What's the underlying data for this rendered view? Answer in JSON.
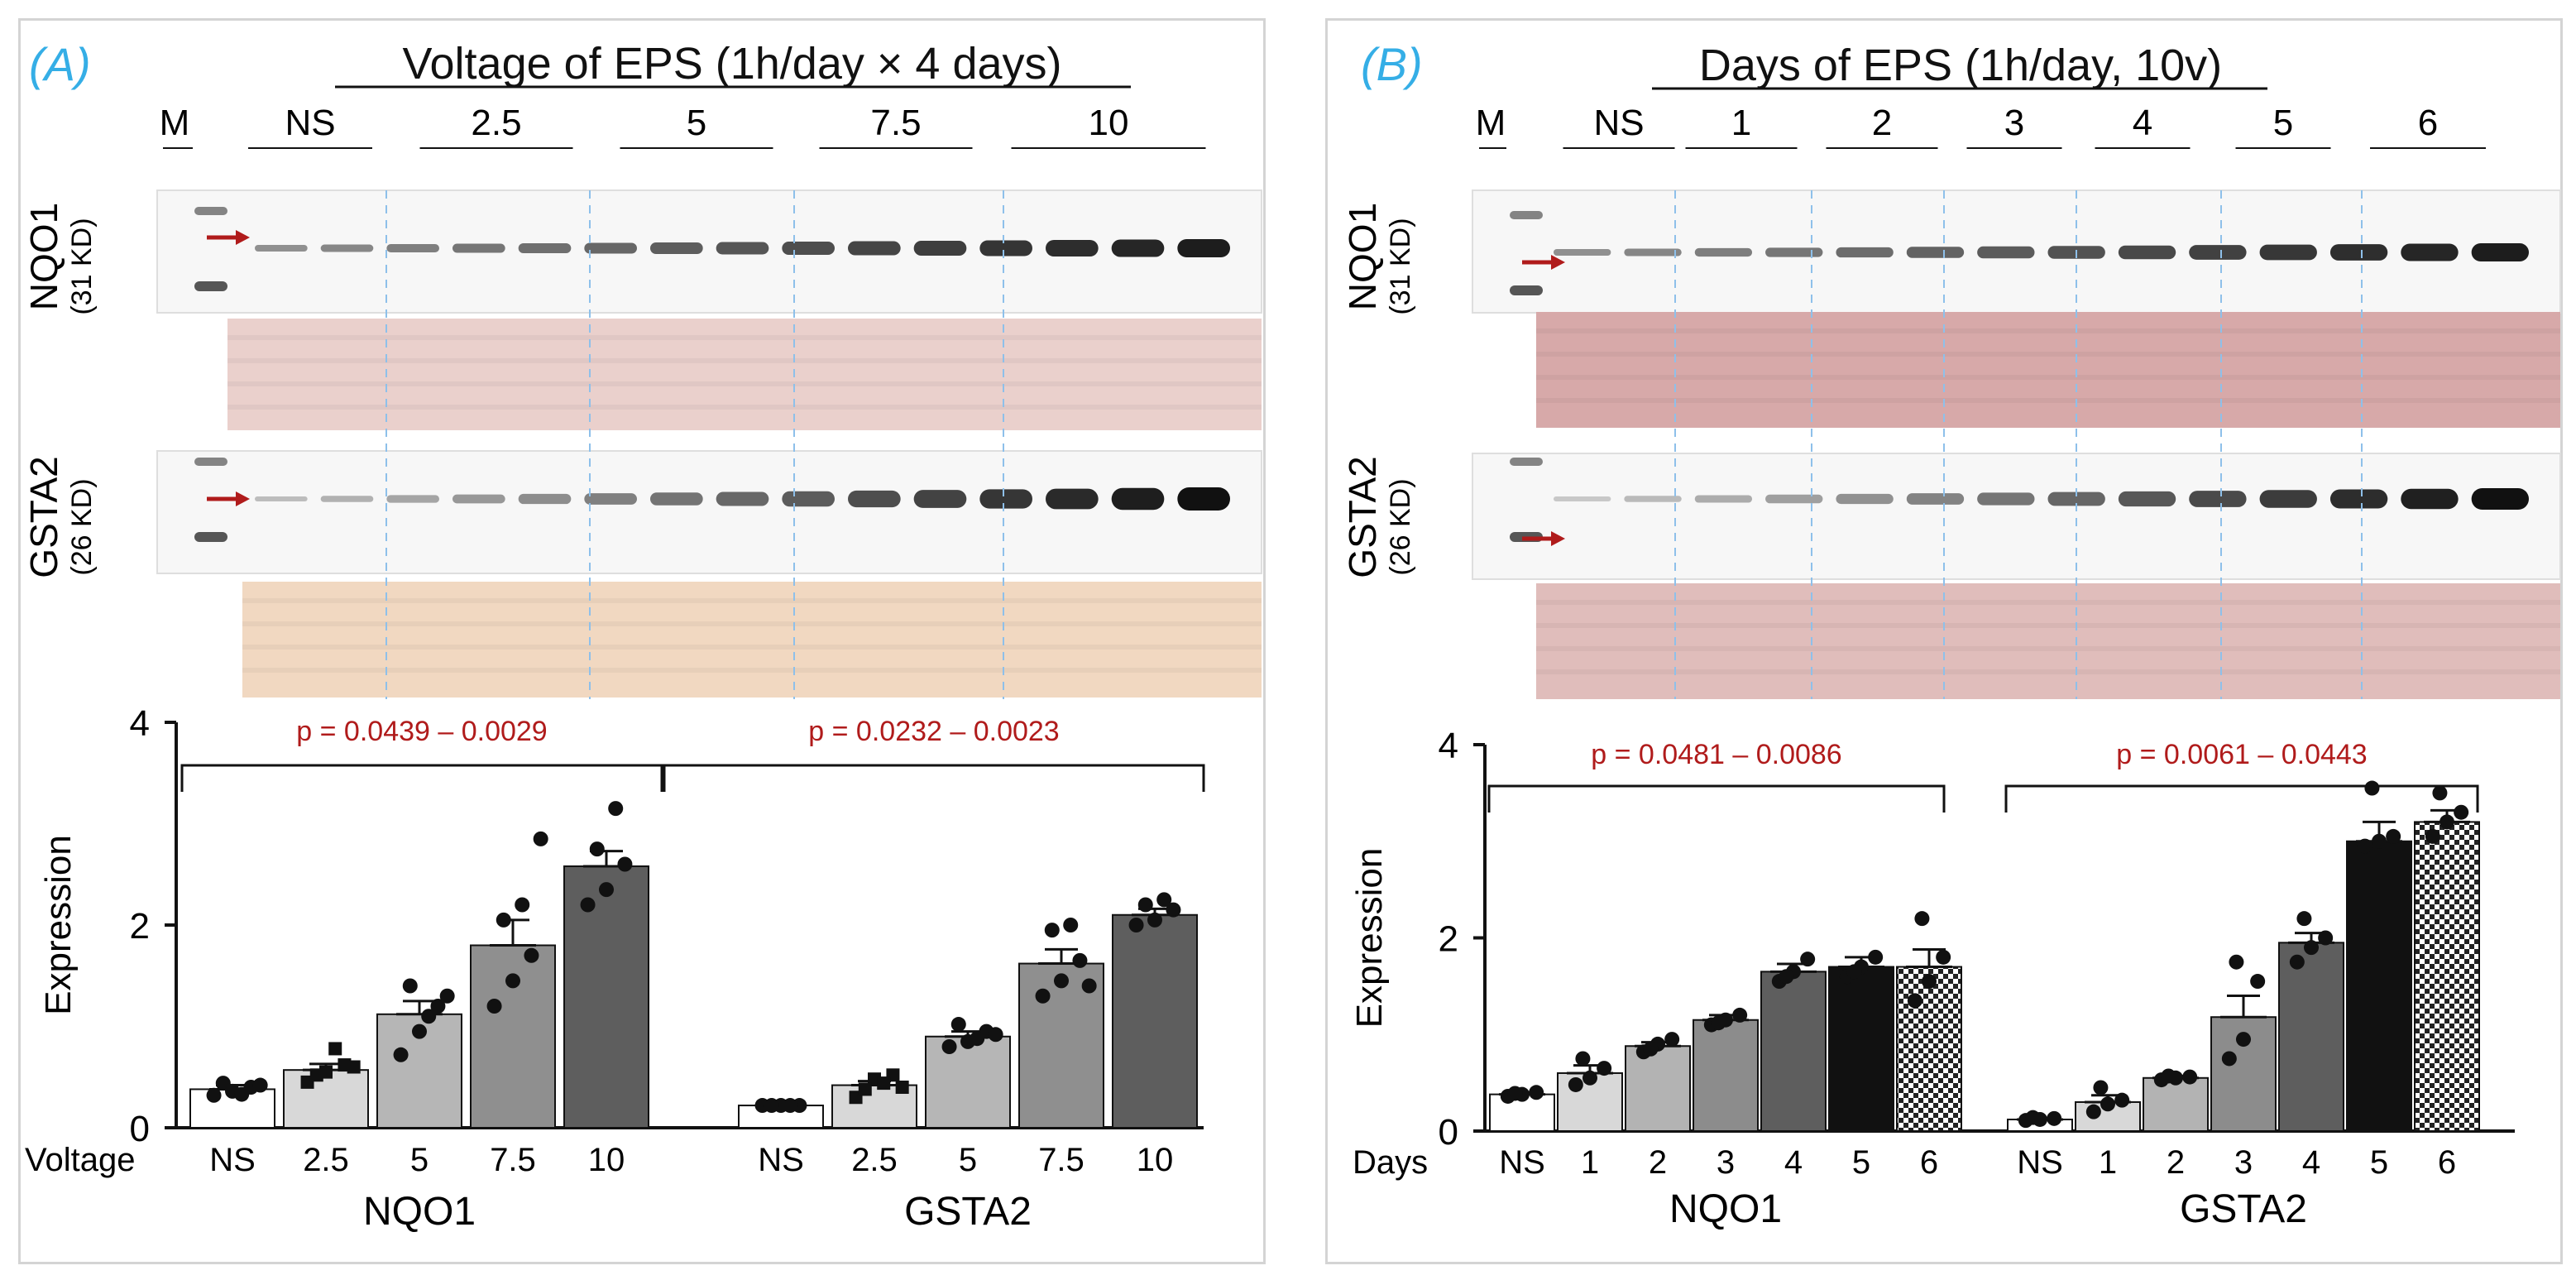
{
  "panels": [
    {
      "letter": "(A)",
      "title": "Voltage of EPS (1h/day × 4 days)",
      "marker_label": "M",
      "blot_lane_groups": [
        "NS",
        "2.5",
        "5",
        "7.5",
        "10"
      ],
      "blots": [
        {
          "protein": "NQO1",
          "size": "(31 KD)"
        },
        {
          "protein": "GSTA2",
          "size": "(26 KD)"
        }
      ],
      "x_prefix": "Voltage",
      "chart_data": {
        "type": "bar",
        "ylabel": "Expression",
        "ylim": [
          0,
          4
        ],
        "yticks": [
          0,
          2,
          4
        ],
        "groups": [
          {
            "name": "NQO1",
            "categories": [
              "NS",
              "2.5",
              "5",
              "7.5",
              "10"
            ],
            "values": [
              0.38,
              0.57,
              1.12,
              1.8,
              2.58
            ],
            "sem": [
              0.04,
              0.06,
              0.13,
              0.25,
              0.15
            ],
            "points": [
              [
                0.32,
                0.36,
                0.4,
                0.44,
                0.33,
                0.42
              ],
              [
                0.45,
                0.55,
                0.62,
                0.52,
                0.78,
                0.6
              ],
              [
                0.72,
                0.95,
                1.2,
                1.4,
                1.1,
                1.3
              ],
              [
                1.2,
                1.45,
                1.7,
                2.05,
                2.2,
                2.85
              ],
              [
                2.2,
                2.35,
                2.6,
                2.75,
                3.15
              ]
            ],
            "p_label": "p = 0.0439 – 0.0029"
          },
          {
            "name": "GSTA2",
            "categories": [
              "NS",
              "2.5",
              "5",
              "7.5",
              "10"
            ],
            "values": [
              0.22,
              0.42,
              0.9,
              1.62,
              2.1
            ],
            "sem": [
              0.01,
              0.04,
              0.05,
              0.14,
              0.06
            ],
            "points": [
              [
                0.22,
                0.22,
                0.22,
                0.22,
                0.22
              ],
              [
                0.3,
                0.48,
                0.52,
                0.38,
                0.44,
                0.4
              ],
              [
                0.8,
                0.85,
                0.95,
                1.02,
                0.88,
                0.92
              ],
              [
                1.3,
                1.45,
                1.65,
                1.95,
                2.0,
                1.4
              ],
              [
                2.0,
                2.05,
                2.15,
                2.2,
                2.25
              ]
            ],
            "p_label": "p = 0.0232 – 0.0023"
          }
        ]
      }
    },
    {
      "letter": "(B)",
      "title": "Days of EPS (1h/day, 10v)",
      "marker_label": "M",
      "blot_lane_groups": [
        "NS",
        "1",
        "2",
        "3",
        "4",
        "5",
        "6"
      ],
      "blots": [
        {
          "protein": "NQO1",
          "size": "(31 KD)"
        },
        {
          "protein": "GSTA2",
          "size": "(26 KD)"
        }
      ],
      "x_prefix": "Days",
      "chart_data": {
        "type": "bar",
        "ylabel": "Expression",
        "ylim": [
          0,
          4
        ],
        "yticks": [
          0,
          2,
          4
        ],
        "groups": [
          {
            "name": "NQO1",
            "categories": [
              "NS",
              "1",
              "2",
              "3",
              "4",
              "5",
              "6"
            ],
            "values": [
              0.38,
              0.6,
              0.88,
              1.15,
              1.65,
              1.7,
              1.7
            ],
            "sem": [
              0.02,
              0.08,
              0.04,
              0.05,
              0.08,
              0.1,
              0.18
            ],
            "points": [
              [
                0.36,
                0.38,
                0.4,
                0.39
              ],
              [
                0.48,
                0.55,
                0.65,
                0.75
              ],
              [
                0.82,
                0.9,
                0.95,
                0.85
              ],
              [
                1.1,
                1.15,
                1.2,
                1.12
              ],
              [
                1.55,
                1.65,
                1.78,
                1.6
              ],
              [
                1.6,
                1.7,
                1.8,
                1.65
              ],
              [
                1.35,
                1.55,
                1.8,
                2.2
              ]
            ],
            "p_label": "p = 0.0481 – 0.0086"
          },
          {
            "name": "GSTA2",
            "categories": [
              "NS",
              "1",
              "2",
              "3",
              "4",
              "5",
              "6"
            ],
            "values": [
              0.12,
              0.3,
              0.55,
              1.18,
              1.95,
              3.0,
              3.2
            ],
            "sem": [
              0.01,
              0.07,
              0.02,
              0.22,
              0.1,
              0.2,
              0.12
            ],
            "points": [
              [
                0.11,
                0.12,
                0.13,
                0.14
              ],
              [
                0.2,
                0.28,
                0.32,
                0.45
              ],
              [
                0.53,
                0.55,
                0.56,
                0.57
              ],
              [
                0.75,
                0.95,
                1.55,
                1.75
              ],
              [
                1.75,
                1.9,
                2.0,
                2.2
              ],
              [
                2.95,
                3.0,
                3.05,
                3.55
              ],
              [
                3.05,
                3.2,
                3.3,
                3.5
              ]
            ],
            "p_label": "p = 0.0061 – 0.0443"
          }
        ]
      }
    }
  ]
}
